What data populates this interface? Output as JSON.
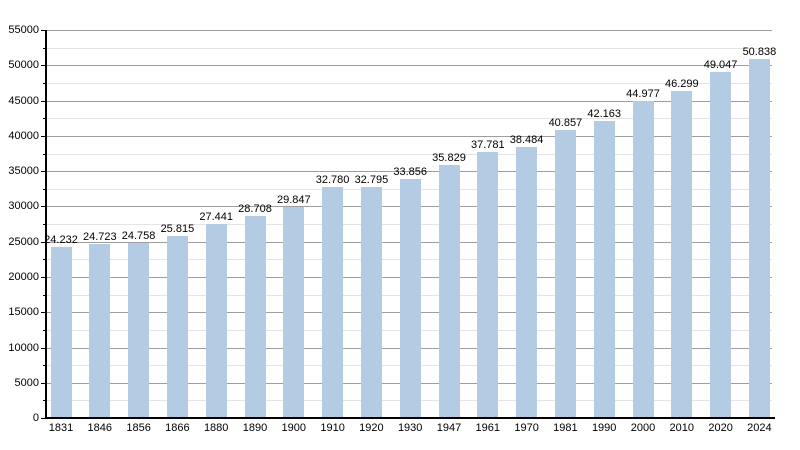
{
  "chart_data": {
    "type": "bar",
    "title": "",
    "xlabel": "",
    "ylabel": "",
    "legend": "none",
    "grid": true,
    "categories": [
      "1831",
      "1846",
      "1856",
      "1866",
      "1880",
      "1890",
      "1900",
      "1910",
      "1920",
      "1930",
      "1947",
      "1961",
      "1970",
      "1981",
      "1990",
      "2000",
      "2010",
      "2020",
      "2024"
    ],
    "values": [
      24232,
      24723,
      24758,
      25815,
      27441,
      28708,
      29847,
      32780,
      32795,
      33856,
      35829,
      37781,
      38484,
      40857,
      42163,
      44977,
      46299,
      49047,
      50838
    ],
    "value_labels": [
      "24.232",
      "24.723",
      "24.758",
      "25.815",
      "27.441",
      "28.708",
      "29.847",
      "32.780",
      "32.795",
      "33.856",
      "35.829",
      "37.781",
      "38.484",
      "40.857",
      "42.163",
      "44.977",
      "46.299",
      "49.047",
      "50.838"
    ],
    "ylim": [
      0,
      55000
    ],
    "y_ticks": [
      0,
      5000,
      10000,
      15000,
      20000,
      25000,
      30000,
      35000,
      40000,
      45000,
      50000,
      55000
    ],
    "ytick_major_step": 5000,
    "ytick_minor_step": 2500,
    "colors": {
      "bar": "#b3cce4",
      "grid_major": "#9e9e9e",
      "grid_minor": "#e4e4e4",
      "axis": "#000000",
      "text": "#000000"
    }
  }
}
